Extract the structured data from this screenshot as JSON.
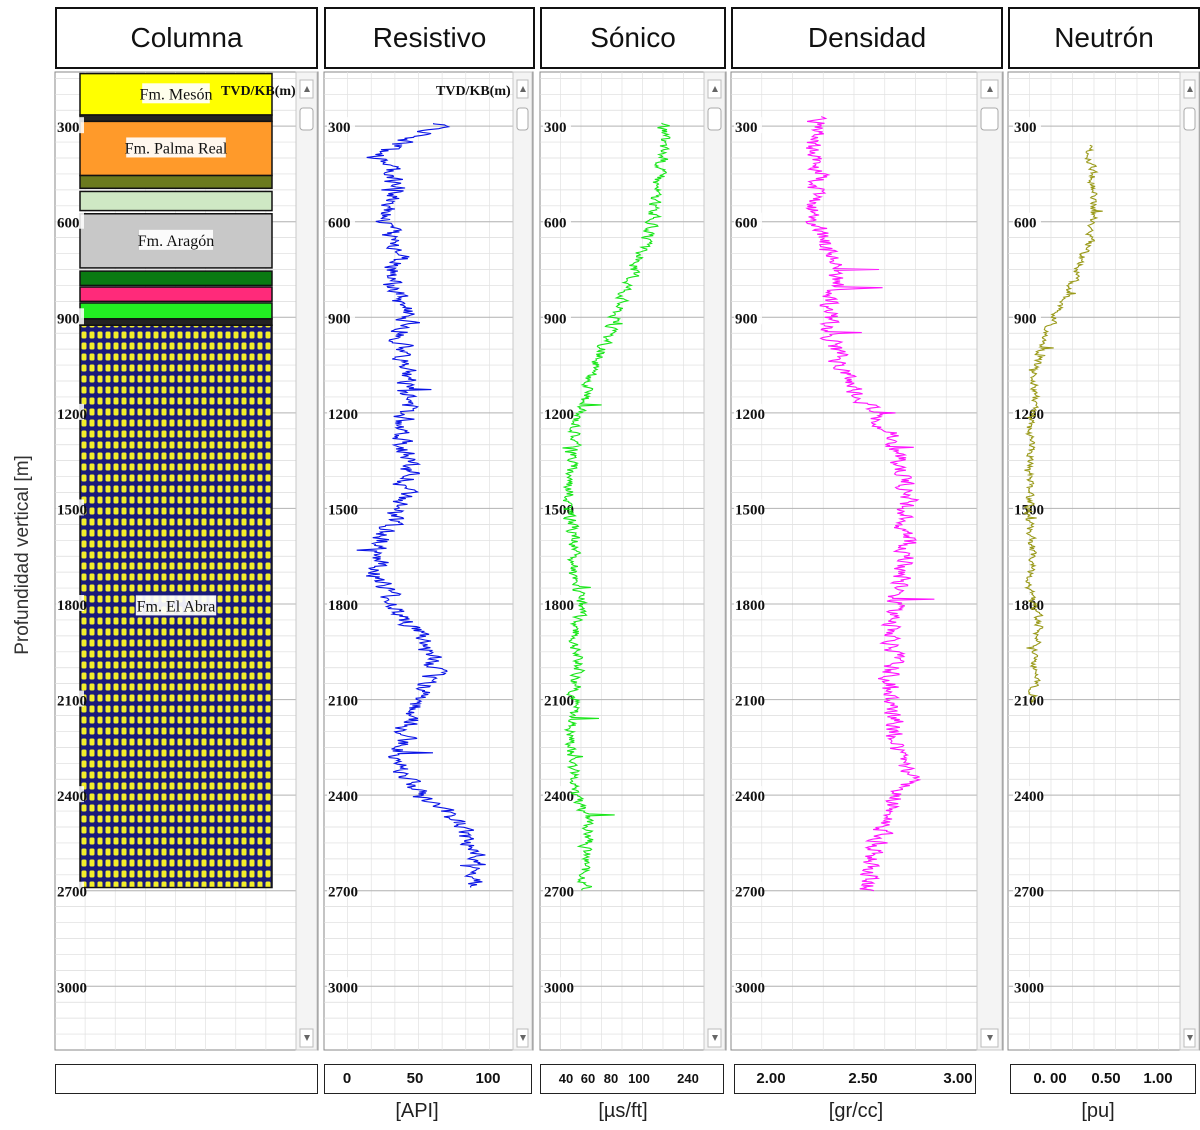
{
  "chart_data": {
    "type": "line",
    "ylabel": "Profundidad vertical  [m]",
    "depth_axis": {
      "ticks": [
        300,
        600,
        900,
        1200,
        1500,
        1800,
        2100,
        2400,
        2700,
        3000
      ],
      "range": [
        130,
        3200
      ],
      "inverted": true
    },
    "depth_header": "TVD/KB(m)",
    "grid": true,
    "tracks": [
      {
        "title": "Columna",
        "type": "lithology-column",
        "formations": [
          {
            "name": "Fm. Mesón",
            "top": 135,
            "base": 265,
            "color": "#ffff00"
          },
          {
            "name": "",
            "top": 265,
            "base": 285,
            "color": "#222222"
          },
          {
            "name": "Fm. Palma Real",
            "top": 285,
            "base": 455,
            "color": "#ff9a2a"
          },
          {
            "name": "",
            "top": 455,
            "base": 495,
            "color": "#6b7a1e"
          },
          {
            "name": "",
            "top": 505,
            "base": 565,
            "color": "#cfe8c4"
          },
          {
            "name": "Fm. Aragón",
            "top": 575,
            "base": 745,
            "color": "#c8c8c8"
          },
          {
            "name": "",
            "top": 755,
            "base": 800,
            "color": "#0a7a12"
          },
          {
            "name": "",
            "top": 805,
            "base": 850,
            "color": "#ff2a7a"
          },
          {
            "name": "",
            "top": 855,
            "base": 905,
            "color": "#22ee22"
          },
          {
            "name": "",
            "top": 905,
            "base": 925,
            "color": "#222222"
          },
          {
            "name": "Fm. El Abra",
            "top": 925,
            "base": 2690,
            "color": "#1a1a8a",
            "pattern": "dots-yellow"
          }
        ]
      },
      {
        "title": "Resistivo",
        "unit": "[API]",
        "color": "#0a14e6",
        "scale": {
          "ticks": [
            "0",
            "50",
            "100"
          ],
          "tick_values": [
            0,
            50,
            100
          ],
          "min": -10,
          "max": 120
        },
        "anchors": [
          [
            300,
            70
          ],
          [
            380,
            28
          ],
          [
            500,
            40
          ],
          [
            600,
            32
          ],
          [
            700,
            40
          ],
          [
            800,
            35
          ],
          [
            900,
            48
          ],
          [
            1000,
            42
          ],
          [
            1100,
            48
          ],
          [
            1200,
            45
          ],
          [
            1300,
            45
          ],
          [
            1400,
            48
          ],
          [
            1500,
            38
          ],
          [
            1600,
            28
          ],
          [
            1700,
            25
          ],
          [
            1800,
            35
          ],
          [
            1900,
            55
          ],
          [
            2000,
            65
          ],
          [
            2100,
            55
          ],
          [
            2200,
            45
          ],
          [
            2300,
            40
          ],
          [
            2400,
            55
          ],
          [
            2500,
            85
          ],
          [
            2600,
            95
          ],
          [
            2680,
            95
          ]
        ],
        "noise": 12,
        "lo": 2,
        "hi": 110,
        "top": 290,
        "base": 2690
      },
      {
        "title": "Sónico",
        "unit": "[µs/ft]",
        "color": "#1ae61a",
        "scale": {
          "ticks": [
            "40",
            "60",
            "80",
            "100",
            "240"
          ],
          "tick_values": [
            40,
            60,
            80,
            100,
            240
          ],
          "min": 20,
          "max": 260
        },
        "anchors": [
          [
            300,
            200
          ],
          [
            400,
            200
          ],
          [
            500,
            190
          ],
          [
            600,
            185
          ],
          [
            700,
            165
          ],
          [
            800,
            150
          ],
          [
            900,
            130
          ],
          [
            1000,
            110
          ],
          [
            1100,
            90
          ],
          [
            1200,
            75
          ],
          [
            1300,
            70
          ],
          [
            1400,
            65
          ],
          [
            1500,
            60
          ],
          [
            1600,
            70
          ],
          [
            1700,
            65
          ],
          [
            1800,
            80
          ],
          [
            1900,
            70
          ],
          [
            2000,
            75
          ],
          [
            2100,
            70
          ],
          [
            2200,
            65
          ],
          [
            2300,
            65
          ],
          [
            2400,
            70
          ],
          [
            2500,
            90
          ],
          [
            2600,
            85
          ],
          [
            2700,
            85
          ]
        ],
        "noise": 14,
        "lo": 22,
        "hi": 255,
        "top": 290,
        "base": 2700
      },
      {
        "title": "Densidad",
        "unit": "[gr/cc]",
        "color": "#ff14ff",
        "scale": {
          "ticks": [
            "2.00",
            "2.50",
            "3.00"
          ],
          "tick_values": [
            2.0,
            2.5,
            3.0
          ],
          "min": 1.9,
          "max": 3.15
        },
        "anchors": [
          [
            270,
            2.35
          ],
          [
            350,
            2.3
          ],
          [
            450,
            2.35
          ],
          [
            550,
            2.3
          ],
          [
            650,
            2.35
          ],
          [
            750,
            2.45
          ],
          [
            850,
            2.4
          ],
          [
            950,
            2.4
          ],
          [
            1050,
            2.45
          ],
          [
            1150,
            2.55
          ],
          [
            1250,
            2.7
          ],
          [
            1350,
            2.75
          ],
          [
            1450,
            2.8
          ],
          [
            1550,
            2.78
          ],
          [
            1650,
            2.8
          ],
          [
            1750,
            2.75
          ],
          [
            1850,
            2.72
          ],
          [
            1950,
            2.72
          ],
          [
            2050,
            2.7
          ],
          [
            2150,
            2.72
          ],
          [
            2250,
            2.75
          ],
          [
            2350,
            2.8
          ],
          [
            2450,
            2.7
          ],
          [
            2550,
            2.65
          ],
          [
            2650,
            2.6
          ],
          [
            2700,
            2.6
          ]
        ],
        "noise": 0.08,
        "lo": 1.92,
        "hi": 3.1,
        "top": 270,
        "base": 2700
      },
      {
        "title": "Neutrón",
        "unit": "[pu]",
        "color": "#9a9a1a",
        "scale": {
          "ticks": [
            "0. 00",
            "0.50",
            "1.00"
          ],
          "tick_values": [
            0.0,
            0.5,
            1.0
          ],
          "min": -0.15,
          "max": 1.6
        },
        "anchors": [
          [
            360,
            0.65
          ],
          [
            450,
            0.7
          ],
          [
            550,
            0.72
          ],
          [
            650,
            0.68
          ],
          [
            750,
            0.55
          ],
          [
            850,
            0.4
          ],
          [
            950,
            0.22
          ],
          [
            1050,
            0.12
          ],
          [
            1150,
            0.1
          ],
          [
            1250,
            0.05
          ],
          [
            1350,
            0.06
          ],
          [
            1450,
            0.05
          ],
          [
            1550,
            0.05
          ],
          [
            1650,
            0.08
          ],
          [
            1750,
            0.05
          ],
          [
            1850,
            0.15
          ],
          [
            1950,
            0.12
          ],
          [
            2050,
            0.1
          ],
          [
            2100,
            0.1
          ]
        ],
        "noise": 0.07,
        "lo": -0.05,
        "hi": 1.2,
        "top": 360,
        "base": 2110
      }
    ]
  }
}
